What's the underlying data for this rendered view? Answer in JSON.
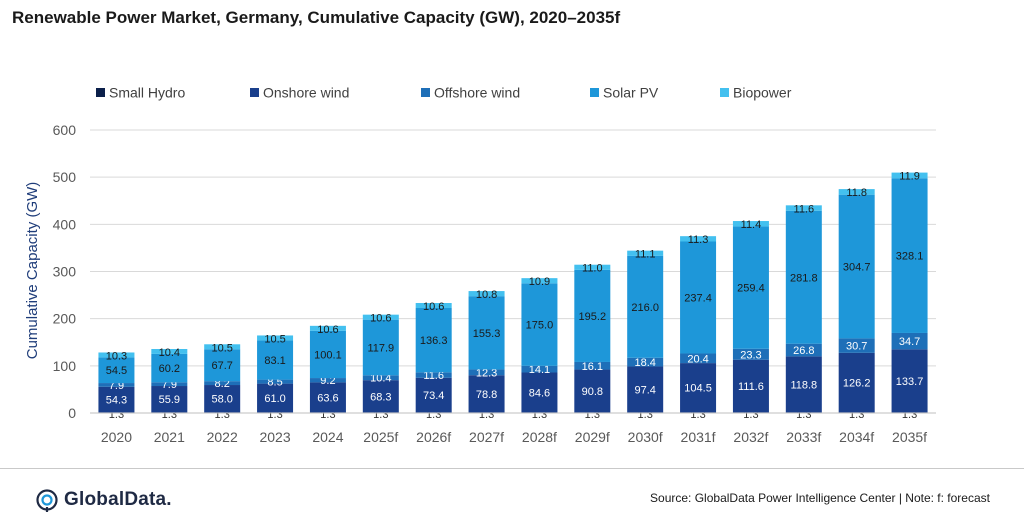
{
  "title": "Renewable Power Market, Germany, Cumulative Capacity (GW), 2020–2035f",
  "source_text": "Source: GlobalData Power Intelligence Center | Note: f: forecast",
  "logo_text": "GlobalData.",
  "colors": {
    "small_hydro": "#0b1f4a",
    "onshore_wind": "#1a3f8c",
    "offshore_wind": "#1e6fb8",
    "solar_pv": "#1e97d9",
    "biopower": "#43c0ef"
  },
  "chart_data": {
    "type": "bar",
    "stacked": true,
    "categories": [
      "2020",
      "2021",
      "2022",
      "2023",
      "2024",
      "2025f",
      "2026f",
      "2027f",
      "2028f",
      "2029f",
      "2030f",
      "2031f",
      "2032f",
      "2033f",
      "2034f",
      "2035f"
    ],
    "series": [
      {
        "name": "Small Hydro",
        "values": [
          1.3,
          1.3,
          1.3,
          1.3,
          1.3,
          1.3,
          1.3,
          1.3,
          1.3,
          1.3,
          1.3,
          1.3,
          1.3,
          1.3,
          1.3,
          1.3
        ]
      },
      {
        "name": "Onshore wind",
        "values": [
          54.3,
          55.9,
          58.0,
          61.0,
          63.6,
          68.3,
          73.4,
          78.8,
          84.6,
          90.8,
          97.4,
          104.5,
          111.6,
          118.8,
          126.2,
          133.7
        ]
      },
      {
        "name": "Offshore wind",
        "values": [
          7.9,
          7.9,
          8.2,
          8.5,
          9.2,
          10.4,
          11.6,
          12.3,
          14.1,
          16.1,
          18.4,
          20.4,
          23.3,
          26.8,
          30.7,
          34.7
        ]
      },
      {
        "name": "Solar PV",
        "values": [
          54.5,
          60.2,
          67.7,
          83.1,
          100.1,
          117.9,
          136.3,
          155.3,
          175.0,
          195.2,
          216.0,
          237.4,
          259.4,
          281.8,
          304.7,
          328.1
        ]
      },
      {
        "name": "Biopower",
        "values": [
          10.3,
          10.4,
          10.5,
          10.5,
          10.6,
          10.6,
          10.6,
          10.8,
          10.9,
          11.0,
          11.1,
          11.3,
          11.4,
          11.6,
          11.8,
          11.9
        ]
      }
    ],
    "ylabel": "Cumulative Capacity (GW)",
    "xlabel": "",
    "ylim": [
      0,
      600
    ],
    "yticks": [
      0,
      100,
      200,
      300,
      400,
      500,
      600
    ],
    "grid": true,
    "legend_position": "top-left"
  }
}
